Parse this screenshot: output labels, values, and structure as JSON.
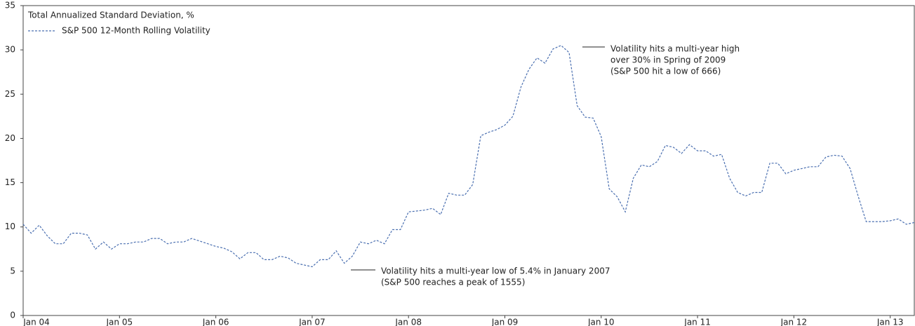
{
  "chart_data": {
    "type": "line",
    "y_label": "Total Annualized Standard Deviation, %",
    "categories": [
      "Jan 04",
      null,
      null,
      null,
      null,
      null,
      null,
      null,
      null,
      null,
      null,
      null,
      "Jan 05",
      null,
      null,
      null,
      null,
      null,
      null,
      null,
      null,
      null,
      null,
      null,
      "Jan 06",
      null,
      null,
      null,
      null,
      null,
      null,
      null,
      null,
      null,
      null,
      null,
      "Jan 07",
      null,
      null,
      null,
      null,
      null,
      null,
      null,
      null,
      null,
      null,
      null,
      "Jan 08",
      null,
      null,
      null,
      null,
      null,
      null,
      null,
      null,
      null,
      null,
      null,
      "Jan 09",
      null,
      null,
      null,
      null,
      null,
      null,
      null,
      null,
      null,
      null,
      null,
      "Jan 10",
      null,
      null,
      null,
      null,
      null,
      null,
      null,
      null,
      null,
      null,
      null,
      "Jan 11",
      null,
      null,
      null,
      null,
      null,
      null,
      null,
      null,
      null,
      null,
      null,
      "Jan 12",
      null,
      null,
      null,
      null,
      null,
      null,
      null,
      null,
      null,
      null,
      null,
      "Jan 13",
      null,
      null,
      null
    ],
    "series": [
      {
        "name": "S&P 500 12-Month Rolling Volatility",
        "color": "#4a6fb0",
        "values": [
          10.3,
          9.3,
          10.2,
          9.0,
          8.1,
          8.1,
          9.3,
          9.3,
          9.1,
          7.5,
          8.3,
          7.5,
          8.1,
          8.1,
          8.3,
          8.3,
          8.7,
          8.7,
          8.1,
          8.3,
          8.3,
          8.7,
          8.4,
          8.1,
          7.8,
          7.6,
          7.2,
          6.4,
          7.1,
          7.1,
          6.3,
          6.3,
          6.7,
          6.5,
          5.9,
          5.7,
          5.5,
          6.3,
          6.3,
          7.3,
          5.9,
          6.7,
          8.3,
          8.1,
          8.5,
          8.1,
          9.7,
          9.7,
          11.7,
          11.8,
          11.9,
          12.1,
          11.4,
          13.8,
          13.6,
          13.6,
          14.8,
          20.3,
          20.7,
          21.0,
          21.5,
          22.5,
          25.8,
          27.8,
          29.1,
          28.5,
          30.1,
          30.5,
          29.7,
          23.7,
          22.4,
          22.3,
          20.2,
          14.3,
          13.4,
          11.7,
          15.5,
          17.0,
          16.8,
          17.4,
          19.2,
          19.0,
          18.3,
          19.3,
          18.6,
          18.6,
          18.0,
          18.2,
          15.5,
          13.9,
          13.5,
          13.9,
          13.9,
          17.2,
          17.2,
          16.0,
          16.4,
          16.6,
          16.8,
          16.8,
          17.9,
          18.1,
          18.0,
          16.6,
          13.5,
          10.6,
          10.6,
          10.6,
          10.7,
          10.9,
          10.3,
          10.5
        ]
      }
    ],
    "ylim": [
      0,
      35
    ],
    "yticks": [
      0,
      5,
      10,
      15,
      20,
      25,
      30,
      35
    ],
    "grid": false,
    "annotations": [
      {
        "lines": [
          "Volatility hits a multi-year high",
          "over 30% in Spring of 2009",
          "(S&P 500 hit a low of 666)"
        ]
      },
      {
        "lines": [
          "Volatility hits a multi-year low of 5.4% in January 2007",
          "(S&P 500 reaches a peak of 1555)"
        ]
      }
    ]
  }
}
